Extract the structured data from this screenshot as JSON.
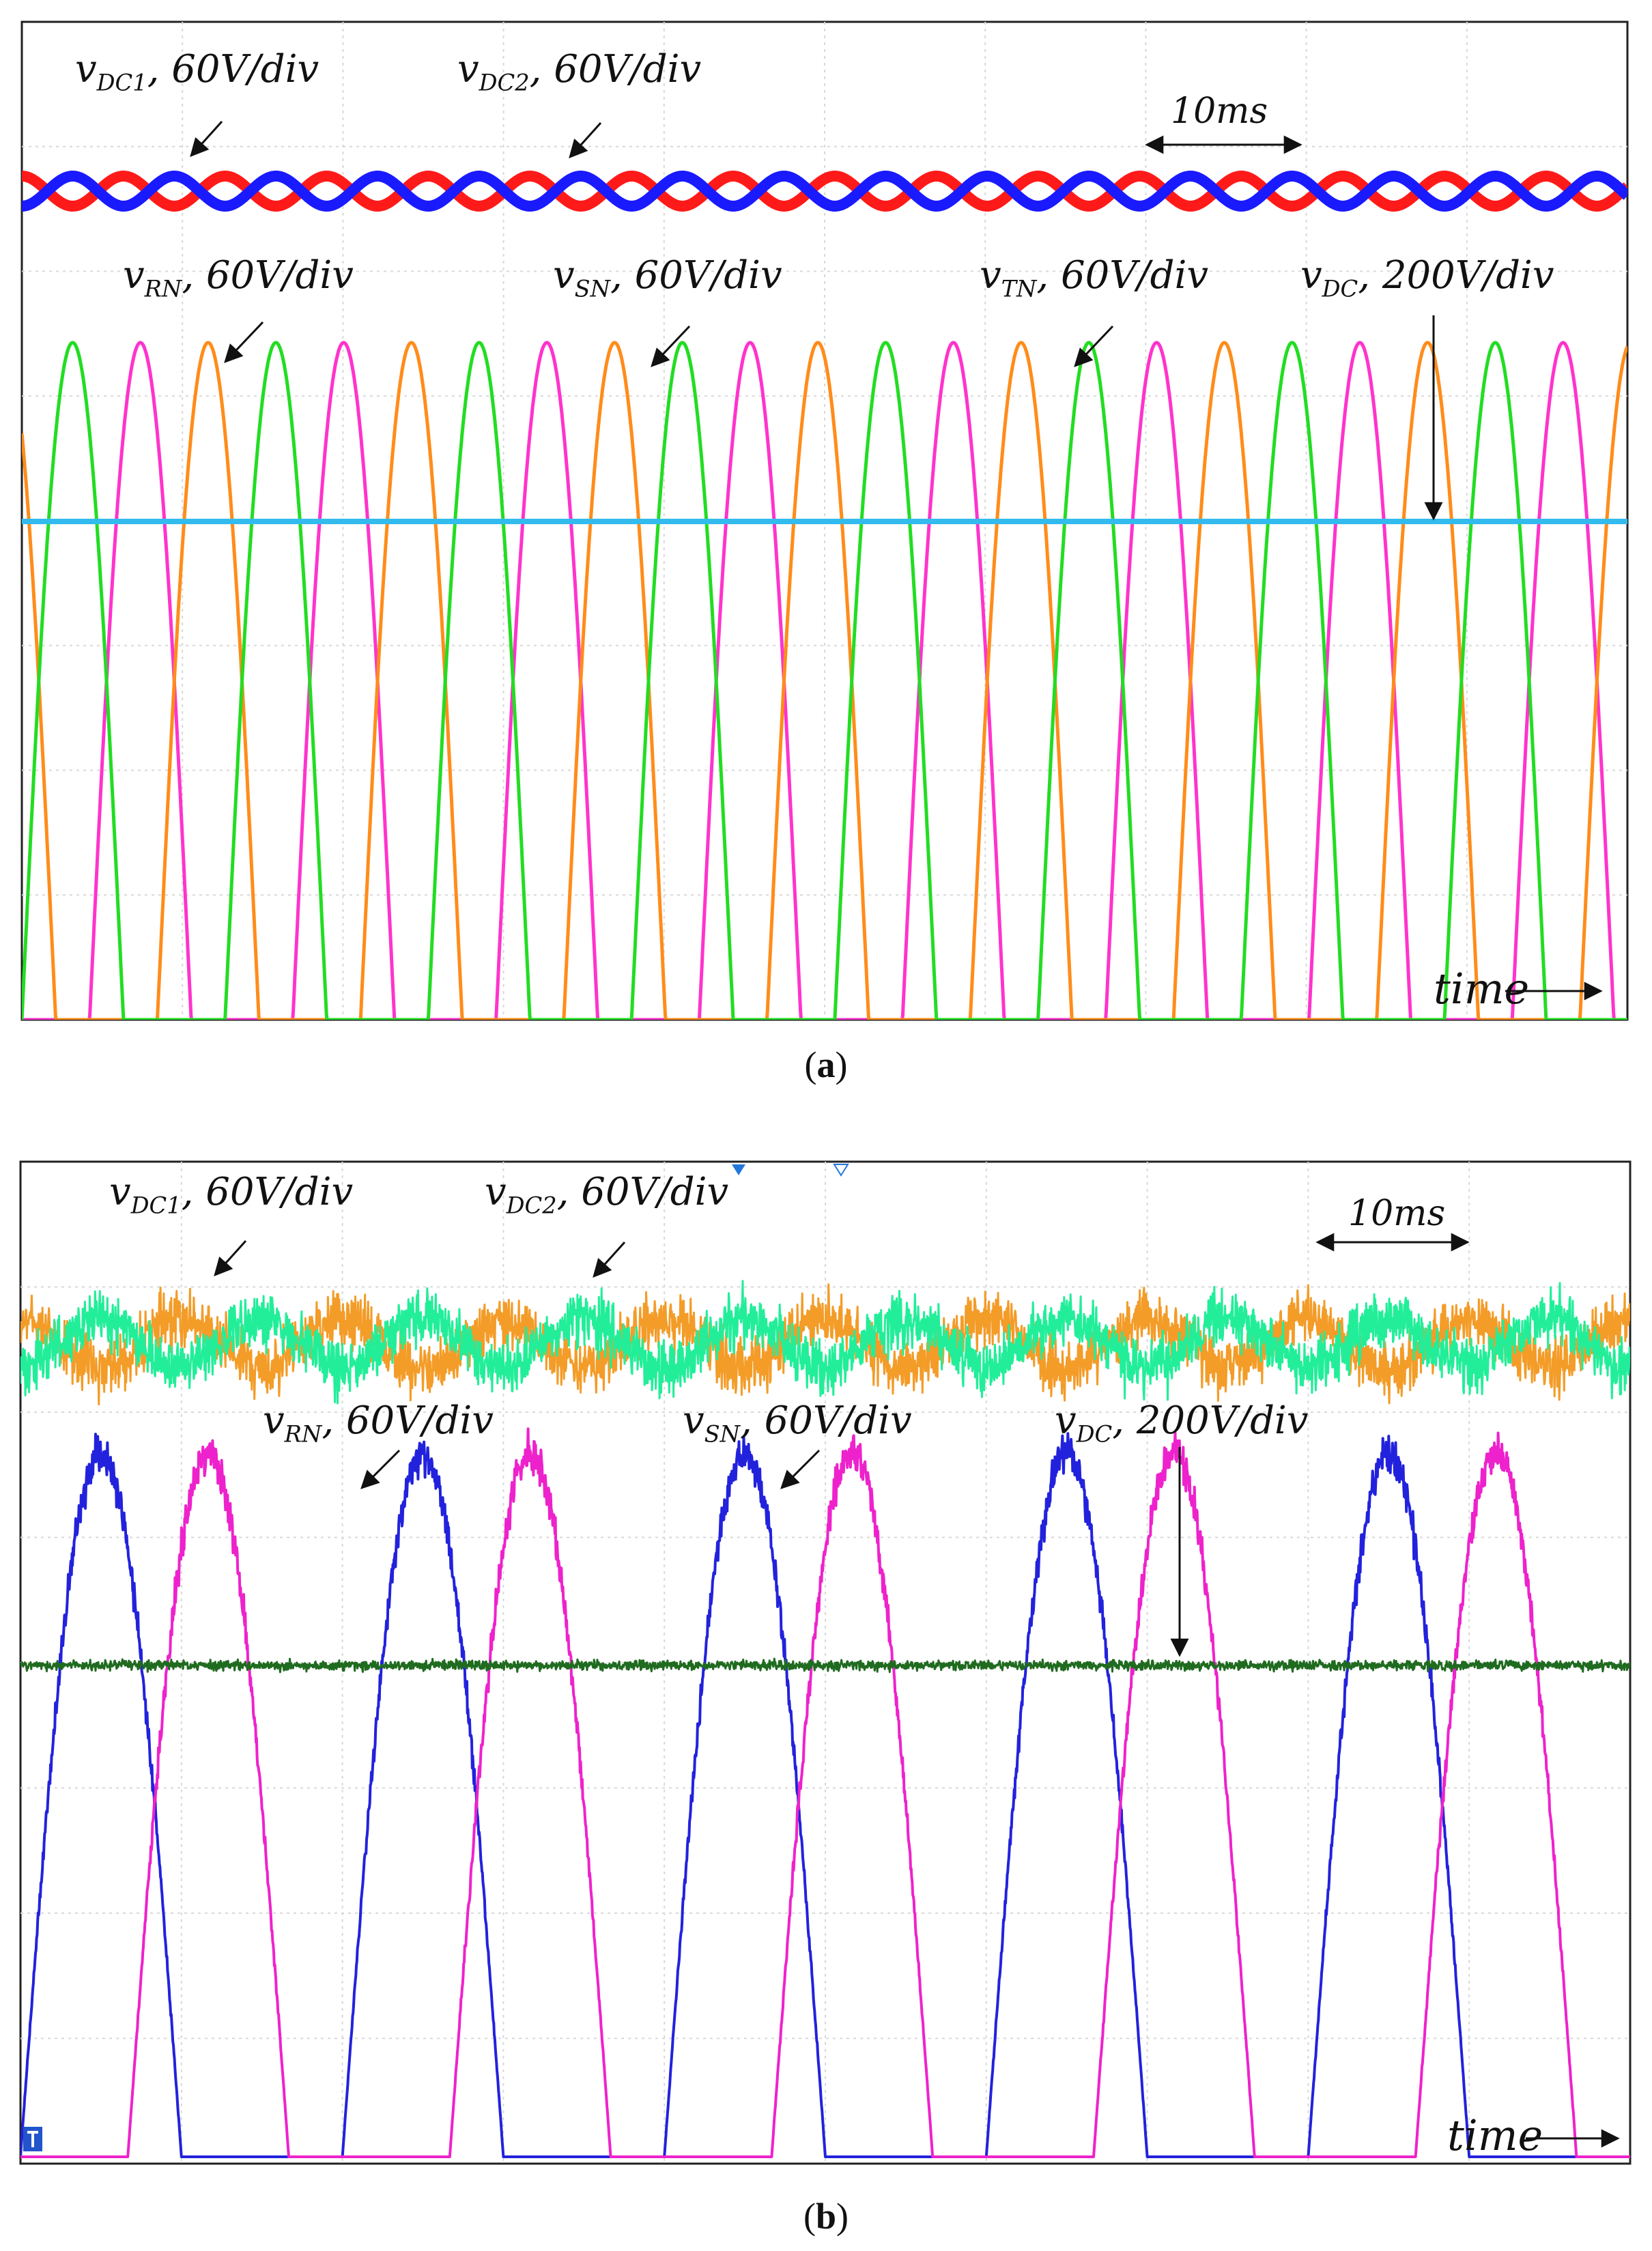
{
  "chart_data": [
    {
      "type": "line",
      "caption": "(a)",
      "caption_letter": "a",
      "x_axis_label": "time",
      "time_marker": "10ms",
      "grid": true,
      "period_ms": 20,
      "x_range_ms": [
        0,
        158
      ],
      "series": [
        {
          "name_sym": "v",
          "name_sub": "DC1",
          "scale": "60V/div",
          "color": "#ff1a1a",
          "kind": "dc_ripple",
          "phase_deg": 180
        },
        {
          "name_sym": "v",
          "name_sub": "DC2",
          "scale": "60V/div",
          "color": "#1a1aff",
          "kind": "dc_ripple",
          "phase_deg": 0
        },
        {
          "name_sym": "v",
          "name_sub": "RN",
          "scale": "60V/div",
          "color": "#ff33cc",
          "kind": "rectified_sine",
          "phase_deg": 120
        },
        {
          "name_sym": "v",
          "name_sub": "SN",
          "scale": "60V/div",
          "color": "#ff8c1a",
          "kind": "rectified_sine",
          "phase_deg": 240
        },
        {
          "name_sym": "v",
          "name_sub": "TN",
          "scale": "60V/div",
          "color": "#22dd22",
          "kind": "rectified_sine",
          "phase_deg": 0
        },
        {
          "name_sym": "v",
          "name_sub": "DC",
          "scale": "200V/div",
          "color": "#33bbee",
          "kind": "dc_flat"
        }
      ]
    },
    {
      "type": "line",
      "caption": "(b)",
      "caption_letter": "b",
      "x_axis_label": "time",
      "time_marker": "10ms",
      "grid": true,
      "period_ms": 20,
      "x_range_ms": [
        0,
        100
      ],
      "series": [
        {
          "name_sym": "v",
          "name_sub": "DC1",
          "scale": "60V/div",
          "color": "#f39c28",
          "kind": "dc_ripple_noisy",
          "phase_deg": 180
        },
        {
          "name_sym": "v",
          "name_sub": "DC2",
          "scale": "60V/div",
          "color": "#22ee99",
          "kind": "dc_ripple_noisy",
          "phase_deg": 0
        },
        {
          "name_sym": "v",
          "name_sub": "RN",
          "scale": "60V/div",
          "color": "#2222dd",
          "kind": "half_wave_noisy",
          "phase_deg": 0
        },
        {
          "name_sym": "v",
          "name_sub": "SN",
          "scale": "60V/div",
          "color": "#ee22cc",
          "kind": "half_wave_noisy",
          "phase_deg": 120
        },
        {
          "name_sym": "v",
          "name_sub": "DC",
          "scale": "200V/div",
          "color": "#1f6b1f",
          "kind": "dc_flat_noisy"
        }
      ]
    }
  ]
}
